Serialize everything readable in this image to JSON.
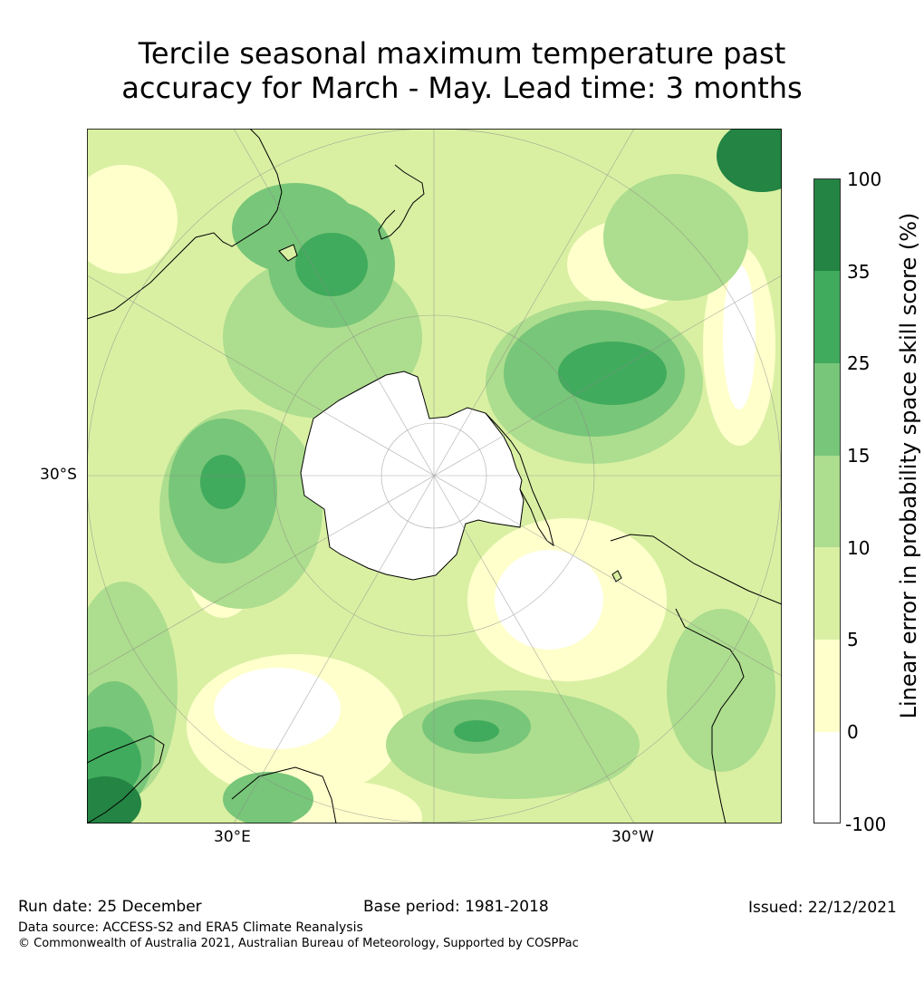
{
  "title_line1": "Tercile seasonal maximum temperature past",
  "title_line2": "accuracy for March - May. Lead time: 3 months",
  "map": {
    "projection": "south polar stereographic",
    "graticule_labels": {
      "lat_left": "30°S",
      "lon_left": "30°E",
      "lon_right": "30°W"
    },
    "ocean_color": "#d9efa5",
    "land_outline_color": "#000000"
  },
  "colorbar": {
    "label": "Linear error in probability space skill score (%)",
    "ticks": [
      "100",
      "35",
      "25",
      "15",
      "10",
      "5",
      "0",
      "-100"
    ],
    "bins": [
      {
        "range": "35-100",
        "color": "#238443"
      },
      {
        "range": "25-35",
        "color": "#41ab5d"
      },
      {
        "range": "15-25",
        "color": "#78c679"
      },
      {
        "range": "10-15",
        "color": "#addd8e"
      },
      {
        "range": "5-10",
        "color": "#d9f0a3"
      },
      {
        "range": "0-5",
        "color": "#ffffcc"
      },
      {
        "range": "-100-0",
        "color": "#ffffff"
      }
    ]
  },
  "footer": {
    "run_date": "Run date: 25 December",
    "base_period": "Base period: 1981-2018",
    "issued": "Issued: 22/12/2021",
    "data_source": "Data source: ACCESS-S2 and ERA5 Climate Reanalysis",
    "copyright": "© Commonwealth of Australia 2021, Australian Bureau of Meteorology, Supported by COSPPac"
  }
}
